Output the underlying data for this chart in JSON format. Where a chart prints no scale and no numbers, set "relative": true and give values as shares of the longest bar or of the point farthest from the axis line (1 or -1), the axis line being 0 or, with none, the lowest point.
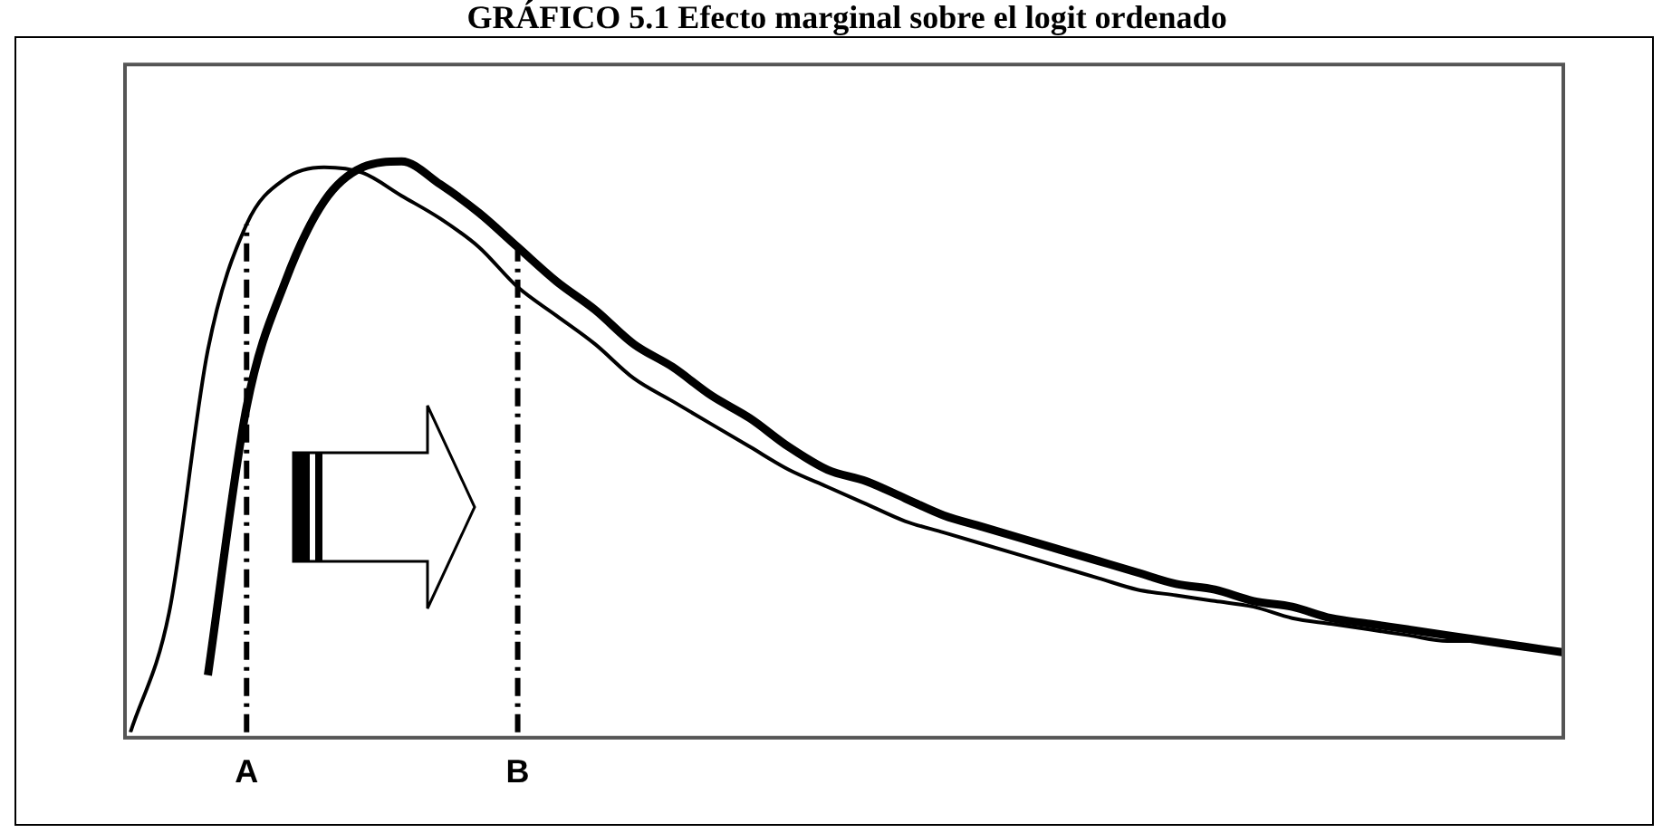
{
  "chart_data": {
    "type": "line",
    "title": "GRÁFICO 5.1 Efecto marginal sobre el logit ordenado",
    "relative": true,
    "categories": [
      null,
      null,
      null,
      "A",
      null,
      null,
      null,
      null,
      null,
      null,
      "B",
      null,
      null,
      null,
      null,
      null,
      null,
      null,
      null,
      null,
      null,
      null,
      null,
      null,
      null,
      null,
      null,
      null,
      null,
      null,
      null,
      null,
      null,
      null,
      null,
      null,
      null,
      null
    ],
    "series": [
      {
        "color": "#000000",
        "values": [
          0,
          0.21,
          0.67,
          0.89,
          0.97,
          0.99,
          0.98,
          0.94,
          0.9,
          0.85,
          0.78,
          0.73,
          0.68,
          0.62,
          0.58,
          0.54,
          0.5,
          0.46,
          0.43,
          0.4,
          0.37,
          0.35,
          0.33,
          0.31,
          0.29,
          0.27,
          0.25,
          0.24,
          0.23,
          0.22,
          0.2,
          0.19,
          0.18,
          0.17,
          0.16,
          0.16,
          0.15,
          0.14
        ]
      },
      {
        "color": "#000000",
        "values": [
          null,
          null,
          0.1,
          0.57,
          0.79,
          0.93,
          0.99,
          1,
          0.96,
          0.91,
          0.85,
          0.79,
          0.74,
          0.68,
          0.64,
          0.59,
          0.55,
          0.5,
          0.46,
          0.44,
          0.41,
          0.38,
          0.36,
          0.34,
          0.32,
          0.3,
          0.28,
          0.26,
          0.25,
          0.23,
          0.22,
          0.2,
          0.19,
          0.18,
          0.17,
          0.16,
          0.15,
          0.14
        ]
      }
    ],
    "ref_lines": [
      {
        "axis": "x",
        "value": "A",
        "color": "#000000",
        "line_style": "dashed"
      },
      {
        "axis": "x",
        "value": "B",
        "color": "#000000",
        "line_style": "dashed"
      }
    ],
    "line_style": "solid",
    "marker": "none",
    "grid": false,
    "legend": false
  }
}
